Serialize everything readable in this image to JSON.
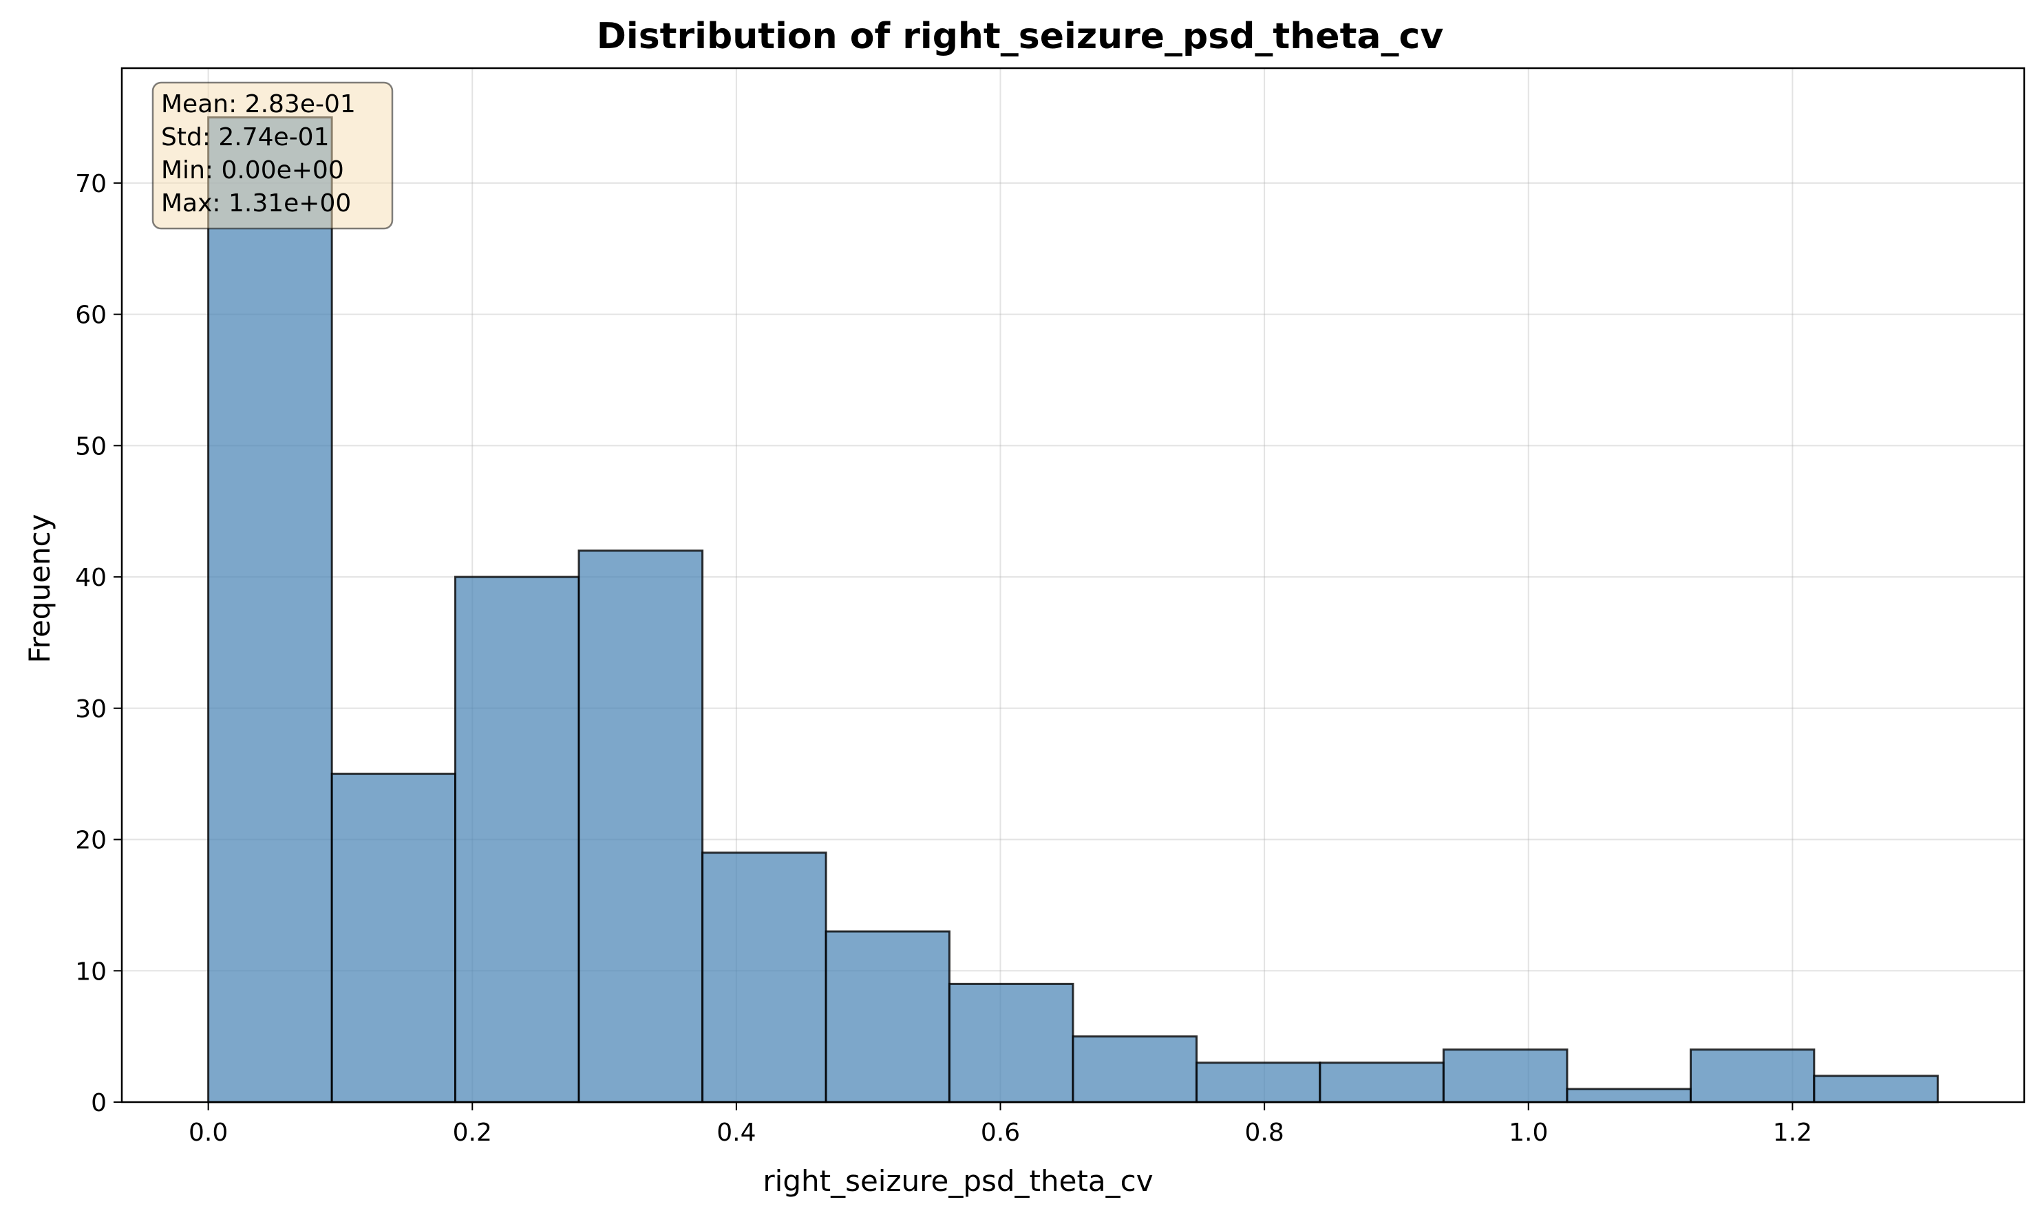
{
  "chart_data": {
    "type": "bar",
    "title": "Distribution of right_seizure_psd_theta_cv",
    "xlabel": "right_seizure_psd_theta_cv",
    "ylabel": "Frequency",
    "bin_edges": [
      0.0,
      0.0936,
      0.1871,
      0.2807,
      0.3743,
      0.4679,
      0.5614,
      0.655,
      0.7486,
      0.8421,
      0.9357,
      1.0293,
      1.1229,
      1.2164,
      1.31
    ],
    "values": [
      75,
      25,
      40,
      42,
      19,
      13,
      9,
      5,
      3,
      3,
      4,
      1,
      4,
      2
    ],
    "xlim": [
      -0.0655,
      1.3755
    ],
    "ylim": [
      0,
      78.75
    ],
    "x_ticks": [
      0.0,
      0.2,
      0.4,
      0.6,
      0.8,
      1.0,
      1.2
    ],
    "x_tick_labels": [
      "0.0",
      "0.2",
      "0.4",
      "0.6",
      "0.8",
      "1.0",
      "1.2"
    ],
    "y_ticks": [
      0,
      10,
      20,
      30,
      40,
      50,
      60,
      70
    ],
    "y_tick_labels": [
      "0",
      "10",
      "20",
      "30",
      "40",
      "50",
      "60",
      "70"
    ],
    "grid": true,
    "bar_color": "#4682b4",
    "bar_edge_color": "#000000",
    "stats_box": {
      "position": "top-left",
      "background": "#f5deb3",
      "lines": [
        "Mean: 2.83e-01",
        "Std: 2.74e-01",
        "Min: 0.00e+00",
        "Max: 1.31e+00"
      ]
    }
  }
}
